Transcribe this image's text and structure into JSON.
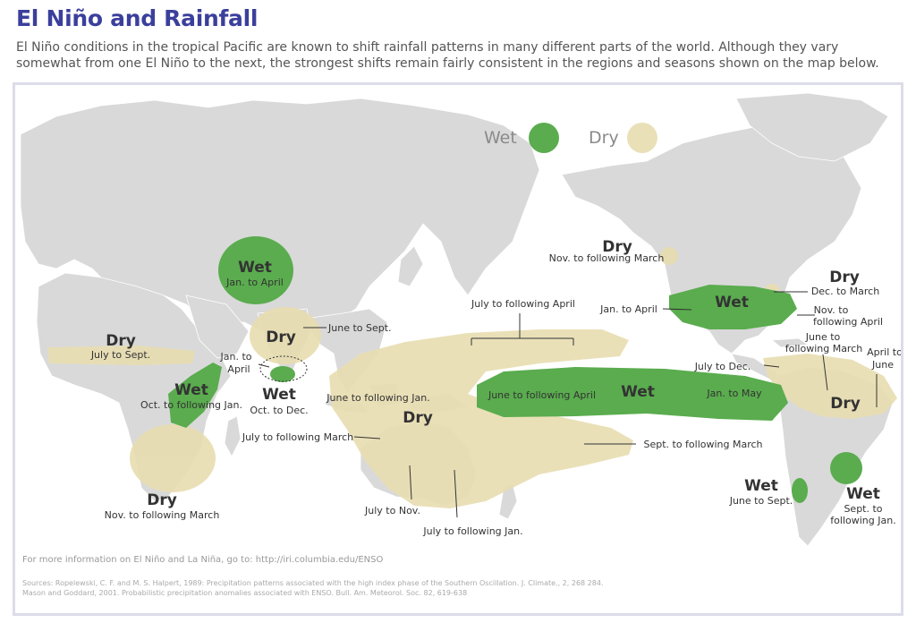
{
  "title": "El Niño and Rainfall",
  "intro": "El Niño conditions in the tropical Pacific are known to shift rainfall patterns in many different parts of the world. Although they vary somewhat from one El Niño to the next, the strongest shifts remain fairly consistent in the regions and seasons shown on the map below.",
  "colors": {
    "wet": "#5aac4e",
    "dry": "#e8ddb0",
    "land": "#d9d9d9",
    "title": "#3b3f9c"
  },
  "legend": {
    "wet": "Wet",
    "dry": "Dry"
  },
  "regions": {
    "central_asia": {
      "type": "Wet",
      "season": "Jan. to April"
    },
    "india": {
      "type": "Dry",
      "season": "June to Sept."
    },
    "east_africa_note": {
      "season_line1": "Jan. to",
      "season_line2": "April"
    },
    "south_india": {
      "type": "Wet",
      "season": "Oct. to Dec."
    },
    "sahel": {
      "type": "Dry",
      "season": "July to Sept."
    },
    "east_africa": {
      "type": "Wet",
      "season": "Oct. to following Jan."
    },
    "southern_africa": {
      "type": "Dry",
      "season": "Nov. to following March"
    },
    "indonesia": {
      "type": "Dry",
      "season_a": "June to following Jan.",
      "season_b": "July to following March"
    },
    "pacific_dry": {
      "season": "July to following April"
    },
    "australia": {
      "season_a": "July to Nov.",
      "season_b": "July to following Jan."
    },
    "south_pacific": {
      "season": "Sept. to following March"
    },
    "central_pacific": {
      "type": "Wet",
      "season_a": "June to following April",
      "season_b": "Jan. to May"
    },
    "pacific_nw": {
      "type": "Dry",
      "season": "Nov. to following March"
    },
    "gulf_coast": {
      "type": "Wet",
      "season_a": "Jan. to April",
      "season_b_line1": "Nov. to",
      "season_b_line2": "following April"
    },
    "great_lakes": {
      "type": "Dry",
      "season": "Dec. to March"
    },
    "northern_south_america": {
      "type": "Dry",
      "season_a": "July to Dec.",
      "season_b_line1": "June to",
      "season_b_line2": "following March",
      "season_c_line1": "April to",
      "season_c_line2": "June"
    },
    "chile": {
      "type": "Wet",
      "season": "June to Sept."
    },
    "southeast_south_america": {
      "type": "Wet",
      "season_line1": "Sept. to",
      "season_line2": "following Jan."
    }
  },
  "footer": {
    "info": "For more information on El Niño and La Niña, go to: http://iri.columbia.edu/ENSO",
    "sources_line1": "Sources:  Ropelewski, C. F. and M. S. Halpert, 1989: Precipitation patterns associated with the high index phase of the Southern Oscillation. J.  Climate., 2, 268 284.",
    "sources_line2": "Mason and Goddard, 2001. Probabilistic precipitation anomalies associated with ENSO.  Bull. Am. Meteorol. Soc. 82, 619-638"
  }
}
